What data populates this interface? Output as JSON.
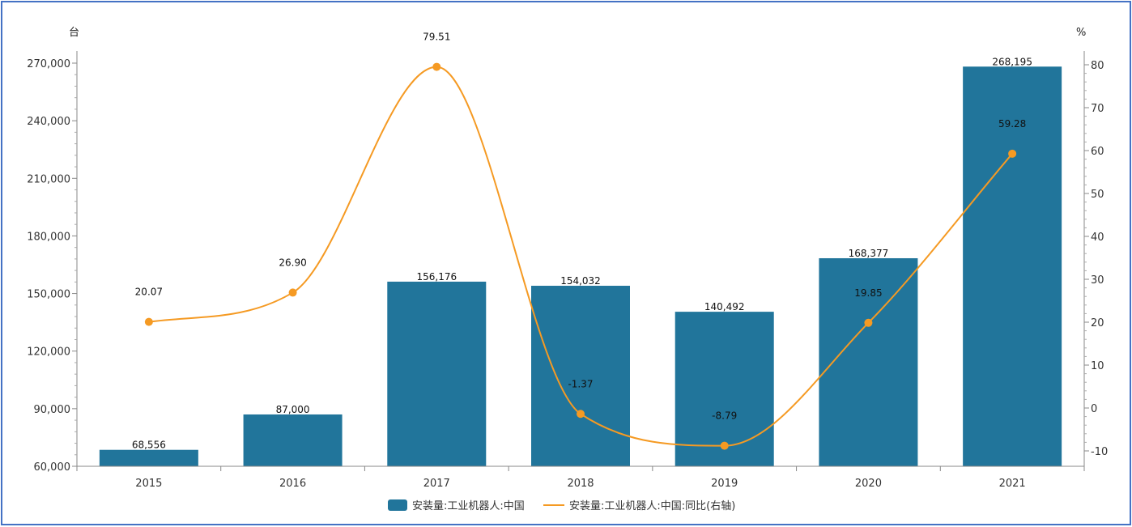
{
  "chart_data": {
    "type": "bar",
    "categories": [
      "2015",
      "2016",
      "2017",
      "2018",
      "2019",
      "2020",
      "2021"
    ],
    "series": [
      {
        "name": "安装量:工业机器人:中国",
        "type": "bar",
        "axis": "left",
        "color": "#21759b",
        "values": [
          68556,
          87000,
          156176,
          154032,
          140492,
          168377,
          268195
        ],
        "labels": [
          "68,556",
          "87,000",
          "156,176",
          "154,032",
          "140,492",
          "168,377",
          "268,195"
        ]
      },
      {
        "name": "安装量:工业机器人:中国:同比(右轴)",
        "type": "line",
        "axis": "right",
        "color": "#f59a23",
        "values": [
          20.07,
          26.9,
          79.51,
          -1.37,
          -8.79,
          19.85,
          59.28
        ],
        "labels": [
          "20.07",
          "26.90",
          "79.51",
          "-1.37",
          "-8.79",
          "19.85",
          "59.28"
        ]
      }
    ],
    "y_left": {
      "unit": "台",
      "range": [
        60000,
        270000
      ],
      "ticks": [
        60000,
        90000,
        120000,
        150000,
        180000,
        210000,
        240000,
        270000
      ],
      "tick_labels": [
        "60,000",
        "90,000",
        "120,000",
        "150,000",
        "180,000",
        "210,000",
        "240,000",
        "270,000"
      ]
    },
    "y_right": {
      "unit": "%",
      "range": [
        -10,
        80
      ],
      "ticks": [
        -10,
        0,
        10,
        20,
        30,
        40,
        50,
        60,
        70,
        80
      ],
      "tick_labels": [
        "-10",
        "0",
        "10",
        "20",
        "30",
        "40",
        "50",
        "60",
        "70",
        "80"
      ]
    },
    "grid": false,
    "legend_position": "bottom"
  }
}
